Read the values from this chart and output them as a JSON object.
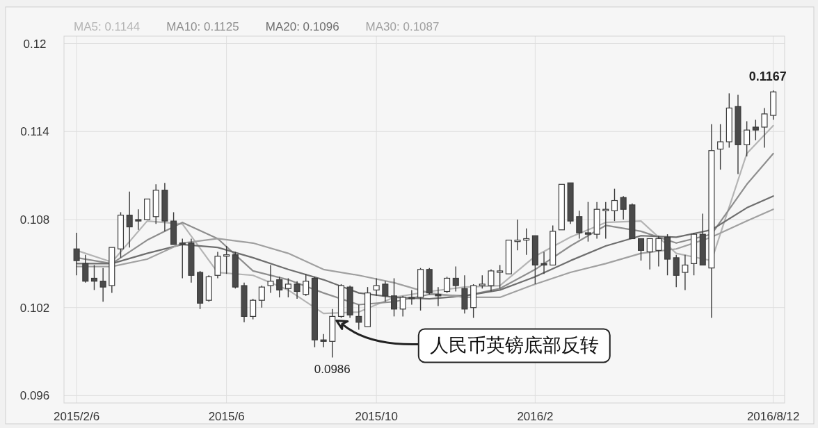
{
  "chart_data": {
    "type": "candlestick",
    "x": [
      "2015-02-06",
      "2015-02-13",
      "2015-02-20",
      "2015-02-27",
      "2015-03-06",
      "2015-03-13",
      "2015-03-20",
      "2015-03-27",
      "2015-04-03",
      "2015-04-10",
      "2015-04-17",
      "2015-04-24",
      "2015-05-01",
      "2015-05-08",
      "2015-05-15",
      "2015-05-22",
      "2015-05-29",
      "2015-06-05",
      "2015-06-12",
      "2015-06-19",
      "2015-06-26",
      "2015-07-03",
      "2015-07-10",
      "2015-07-17",
      "2015-07-24",
      "2015-07-31",
      "2015-08-07",
      "2015-08-14",
      "2015-08-21",
      "2015-08-28",
      "2015-09-04",
      "2015-09-11",
      "2015-09-18",
      "2015-09-25",
      "2015-10-02",
      "2015-10-09",
      "2015-10-16",
      "2015-10-23",
      "2015-10-30",
      "2015-11-06",
      "2015-11-13",
      "2015-11-20",
      "2015-11-27",
      "2015-12-04",
      "2015-12-11",
      "2015-12-18",
      "2015-12-25",
      "2016-01-01",
      "2016-01-08",
      "2016-01-15",
      "2016-01-22",
      "2016-01-29",
      "2016-02-05",
      "2016-02-12",
      "2016-02-19",
      "2016-02-26",
      "2016-03-04",
      "2016-03-11",
      "2016-03-18",
      "2016-03-25",
      "2016-04-01",
      "2016-04-08",
      "2016-04-15",
      "2016-04-22",
      "2016-04-29",
      "2016-05-06",
      "2016-05-13",
      "2016-05-20",
      "2016-05-27",
      "2016-06-03",
      "2016-06-10",
      "2016-06-17",
      "2016-06-24",
      "2016-07-01",
      "2016-07-08",
      "2016-07-15",
      "2016-07-22",
      "2016-07-29",
      "2016-08-05",
      "2016-08-12"
    ],
    "ohlc": [
      [
        0.106,
        0.1071,
        0.1042,
        0.1052
      ],
      [
        0.105,
        0.1056,
        0.1037,
        0.1038
      ],
      [
        0.104,
        0.1049,
        0.1032,
        0.1038
      ],
      [
        0.1038,
        0.1047,
        0.1024,
        0.1034
      ],
      [
        0.1035,
        0.1061,
        0.103,
        0.1061
      ],
      [
        0.106,
        0.1085,
        0.1054,
        0.1083
      ],
      [
        0.1083,
        0.1099,
        0.1061,
        0.1075
      ],
      [
        0.108,
        0.1087,
        0.1073,
        0.1079
      ],
      [
        0.108,
        0.1094,
        0.108,
        0.1094
      ],
      [
        0.1082,
        0.1104,
        0.1077,
        0.11
      ],
      [
        0.11,
        0.1105,
        0.1072,
        0.1079
      ],
      [
        0.1079,
        0.1085,
        0.1063,
        0.1063
      ],
      [
        0.1064,
        0.1067,
        0.104,
        0.1063
      ],
      [
        0.1064,
        0.1067,
        0.1037,
        0.1042
      ],
      [
        0.1044,
        0.1045,
        0.1019,
        0.1023
      ],
      [
        0.1025,
        0.1042,
        0.1024,
        0.1041
      ],
      [
        0.1042,
        0.1058,
        0.104,
        0.1055
      ],
      [
        0.1055,
        0.1062,
        0.1043,
        0.1056
      ],
      [
        0.1056,
        0.1058,
        0.1033,
        0.1034
      ],
      [
        0.1035,
        0.1037,
        0.101,
        0.1014
      ],
      [
        0.1014,
        0.1026,
        0.1012,
        0.1025
      ],
      [
        0.1025,
        0.1035,
        0.102,
        0.1034
      ],
      [
        0.1035,
        0.1049,
        0.103,
        0.1038
      ],
      [
        0.1039,
        0.1041,
        0.1027,
        0.1032
      ],
      [
        0.1033,
        0.104,
        0.1027,
        0.1036
      ],
      [
        0.1036,
        0.1038,
        0.1026,
        0.1031
      ],
      [
        0.1029,
        0.1043,
        0.1028,
        0.1038
      ],
      [
        0.104,
        0.1041,
        0.0993,
        0.0998
      ],
      [
        0.0998,
        0.1002,
        0.0993,
        0.0997
      ],
      [
        0.0997,
        0.1019,
        0.0986,
        0.1014
      ],
      [
        0.1014,
        0.1036,
        0.1013,
        0.1035
      ],
      [
        0.1034,
        0.1035,
        0.1013,
        0.1015
      ],
      [
        0.1014,
        0.1022,
        0.1005,
        0.101
      ],
      [
        0.1007,
        0.1034,
        0.1007,
        0.103
      ],
      [
        0.1032,
        0.104,
        0.1028,
        0.1035
      ],
      [
        0.1036,
        0.1038,
        0.1024,
        0.1028
      ],
      [
        0.1028,
        0.104,
        0.1014,
        0.1019
      ],
      [
        0.1019,
        0.1028,
        0.1014,
        0.1027
      ],
      [
        0.1027,
        0.1032,
        0.1022,
        0.1026
      ],
      [
        0.1027,
        0.1047,
        0.1018,
        0.1046
      ],
      [
        0.1046,
        0.1047,
        0.1029,
        0.103
      ],
      [
        0.1029,
        0.1034,
        0.1021,
        0.1028
      ],
      [
        0.1031,
        0.1041,
        0.103,
        0.104
      ],
      [
        0.104,
        0.1048,
        0.1031,
        0.1035
      ],
      [
        0.1033,
        0.1042,
        0.1016,
        0.1019
      ],
      [
        0.102,
        0.1036,
        0.1013,
        0.1035
      ],
      [
        0.1035,
        0.1042,
        0.1033,
        0.1036
      ],
      [
        0.1035,
        0.1046,
        0.1031,
        0.1045
      ],
      [
        0.1044,
        0.1049,
        0.1033,
        0.1045
      ],
      [
        0.1043,
        0.1066,
        0.1043,
        0.1066
      ],
      [
        0.1065,
        0.108,
        0.1059,
        0.1066
      ],
      [
        0.1066,
        0.1074,
        0.1056,
        0.1067
      ],
      [
        0.1069,
        0.1069,
        0.1036,
        0.1049
      ],
      [
        0.105,
        0.1058,
        0.1043,
        0.1049
      ],
      [
        0.1049,
        0.1076,
        0.1049,
        0.1072
      ],
      [
        0.1073,
        0.1104,
        0.1073,
        0.1104
      ],
      [
        0.1105,
        0.1105,
        0.1077,
        0.1079
      ],
      [
        0.1082,
        0.1086,
        0.1067,
        0.1071
      ],
      [
        0.1071,
        0.1092,
        0.1065,
        0.107
      ],
      [
        0.107,
        0.1092,
        0.1067,
        0.1087
      ],
      [
        0.1086,
        0.1092,
        0.1067,
        0.1087
      ],
      [
        0.1086,
        0.1101,
        0.1079,
        0.1093
      ],
      [
        0.1095,
        0.1096,
        0.108,
        0.1087
      ],
      [
        0.109,
        0.1091,
        0.1067,
        0.1067
      ],
      [
        0.1067,
        0.1067,
        0.1052,
        0.1059
      ],
      [
        0.1058,
        0.1067,
        0.1046,
        0.1067
      ],
      [
        0.1059,
        0.1069,
        0.1048,
        0.1067
      ],
      [
        0.1068,
        0.107,
        0.1042,
        0.1053
      ],
      [
        0.1054,
        0.1056,
        0.1034,
        0.1042
      ],
      [
        0.1044,
        0.1056,
        0.1032,
        0.1049
      ],
      [
        0.105,
        0.1071,
        0.1042,
        0.107
      ],
      [
        0.107,
        0.1084,
        0.1049,
        0.1049
      ],
      [
        0.1047,
        0.1145,
        0.1013,
        0.1127
      ],
      [
        0.1128,
        0.1145,
        0.1114,
        0.1133
      ],
      [
        0.1133,
        0.1166,
        0.1129,
        0.1156
      ],
      [
        0.1157,
        0.1165,
        0.1111,
        0.1131
      ],
      [
        0.1131,
        0.1147,
        0.1123,
        0.1141
      ],
      [
        0.1143,
        0.1148,
        0.1134,
        0.1141
      ],
      [
        0.1143,
        0.1156,
        0.1129,
        0.1152
      ],
      [
        0.1151,
        0.1168,
        0.1148,
        0.1167
      ]
    ],
    "series": [
      {
        "name": "MA5: 0.1144",
        "type": "line",
        "color": "#b4b4b4",
        "x": [
          "2015-02-06",
          "2015-03-06",
          "2015-04-03",
          "2015-05-01",
          "2015-05-29",
          "2015-06-26",
          "2015-07-24",
          "2015-08-21",
          "2015-09-18",
          "2015-10-16",
          "2015-11-13",
          "2015-12-11",
          "2016-01-08",
          "2016-02-05",
          "2016-03-04",
          "2016-04-01",
          "2016-04-29",
          "2016-05-27",
          "2016-06-24",
          "2016-07-22",
          "2016-08-12"
        ],
        "values": [
          0.1059,
          0.1051,
          0.1079,
          0.1077,
          0.1044,
          0.1042,
          0.1032,
          0.1016,
          0.1017,
          0.1027,
          0.1031,
          0.1034,
          0.1035,
          0.1055,
          0.1068,
          0.1078,
          0.1079,
          0.1057,
          0.1052,
          0.1125,
          0.1144
        ]
      },
      {
        "name": "MA10: 0.1125",
        "type": "line",
        "color": "#8e8e8e",
        "x": [
          "2015-02-06",
          "2015-03-06",
          "2015-04-03",
          "2015-05-01",
          "2015-05-29",
          "2015-06-26",
          "2015-07-24",
          "2015-08-21",
          "2015-09-18",
          "2015-10-16",
          "2015-11-13",
          "2015-12-11",
          "2016-01-08",
          "2016-02-05",
          "2016-03-04",
          "2016-04-01",
          "2016-04-29",
          "2016-05-27",
          "2016-06-24",
          "2016-07-22",
          "2016-08-12"
        ],
        "values": [
          0.1054,
          0.105,
          0.1066,
          0.1078,
          0.1067,
          0.1045,
          0.1039,
          0.103,
          0.1022,
          0.1024,
          0.1029,
          0.1028,
          0.1033,
          0.1046,
          0.1062,
          0.1076,
          0.1072,
          0.1064,
          0.107,
          0.1104,
          0.1125
        ]
      },
      {
        "name": "MA20: 0.1096",
        "type": "line",
        "color": "#6e6e6e",
        "x": [
          "2015-02-06",
          "2015-03-06",
          "2015-04-03",
          "2015-05-01",
          "2015-05-29",
          "2015-06-26",
          "2015-07-24",
          "2015-08-21",
          "2015-09-18",
          "2015-10-16",
          "2015-11-13",
          "2015-12-11",
          "2016-01-08",
          "2016-02-05",
          "2016-03-04",
          "2016-04-01",
          "2016-04-29",
          "2016-05-27",
          "2016-06-24",
          "2016-07-22",
          "2016-08-12"
        ],
        "values": [
          0.105,
          0.105,
          0.1057,
          0.1063,
          0.1061,
          0.1054,
          0.1046,
          0.1039,
          0.103,
          0.1027,
          0.1026,
          0.1028,
          0.1032,
          0.1041,
          0.1052,
          0.1062,
          0.1069,
          0.1068,
          0.1073,
          0.1088,
          0.1096
        ]
      },
      {
        "name": "MA30: 0.1087",
        "type": "line",
        "color": "#a0a0a0",
        "x": [
          "2015-02-06",
          "2015-03-06",
          "2015-04-03",
          "2015-05-01",
          "2015-05-29",
          "2015-06-26",
          "2015-07-24",
          "2015-08-21",
          "2015-09-18",
          "2015-10-16",
          "2015-11-13",
          "2015-12-11",
          "2016-01-08",
          "2016-02-05",
          "2016-03-04",
          "2016-04-01",
          "2016-04-29",
          "2016-05-27",
          "2016-06-24",
          "2016-07-22",
          "2016-08-12"
        ],
        "values": [
          0.1048,
          0.1048,
          0.1053,
          0.1064,
          0.1067,
          0.1064,
          0.1057,
          0.1046,
          0.1042,
          0.1037,
          0.103,
          0.1027,
          0.1027,
          0.1036,
          0.1044,
          0.105,
          0.1057,
          0.106,
          0.1068,
          0.1079,
          0.1087
        ]
      }
    ],
    "xlim": [
      "2015-01-27",
      "2016-08-21"
    ],
    "xticks": [
      {
        "value": "2015-02-06",
        "label": "2015/2/6"
      },
      {
        "value": "2015-06-05",
        "label": "2015/6"
      },
      {
        "value": "2015-10-02",
        "label": "2015/10"
      },
      {
        "value": "2016-02-05",
        "label": "2016/2"
      },
      {
        "value": "2016-08-12",
        "label": "2016/8/12"
      }
    ],
    "ylim": [
      0.0955,
      0.1205
    ],
    "yticks": [
      0.096,
      0.102,
      0.108,
      0.114,
      0.12
    ],
    "grid": true,
    "legend": "top",
    "annotations": [
      {
        "text": "0.0986",
        "x": "2015-08-28",
        "y": 0.0986
      },
      {
        "text": "0.1167",
        "x": "2016-08-12",
        "y": 0.1167
      },
      "人民币英镑底部反转"
    ]
  }
}
